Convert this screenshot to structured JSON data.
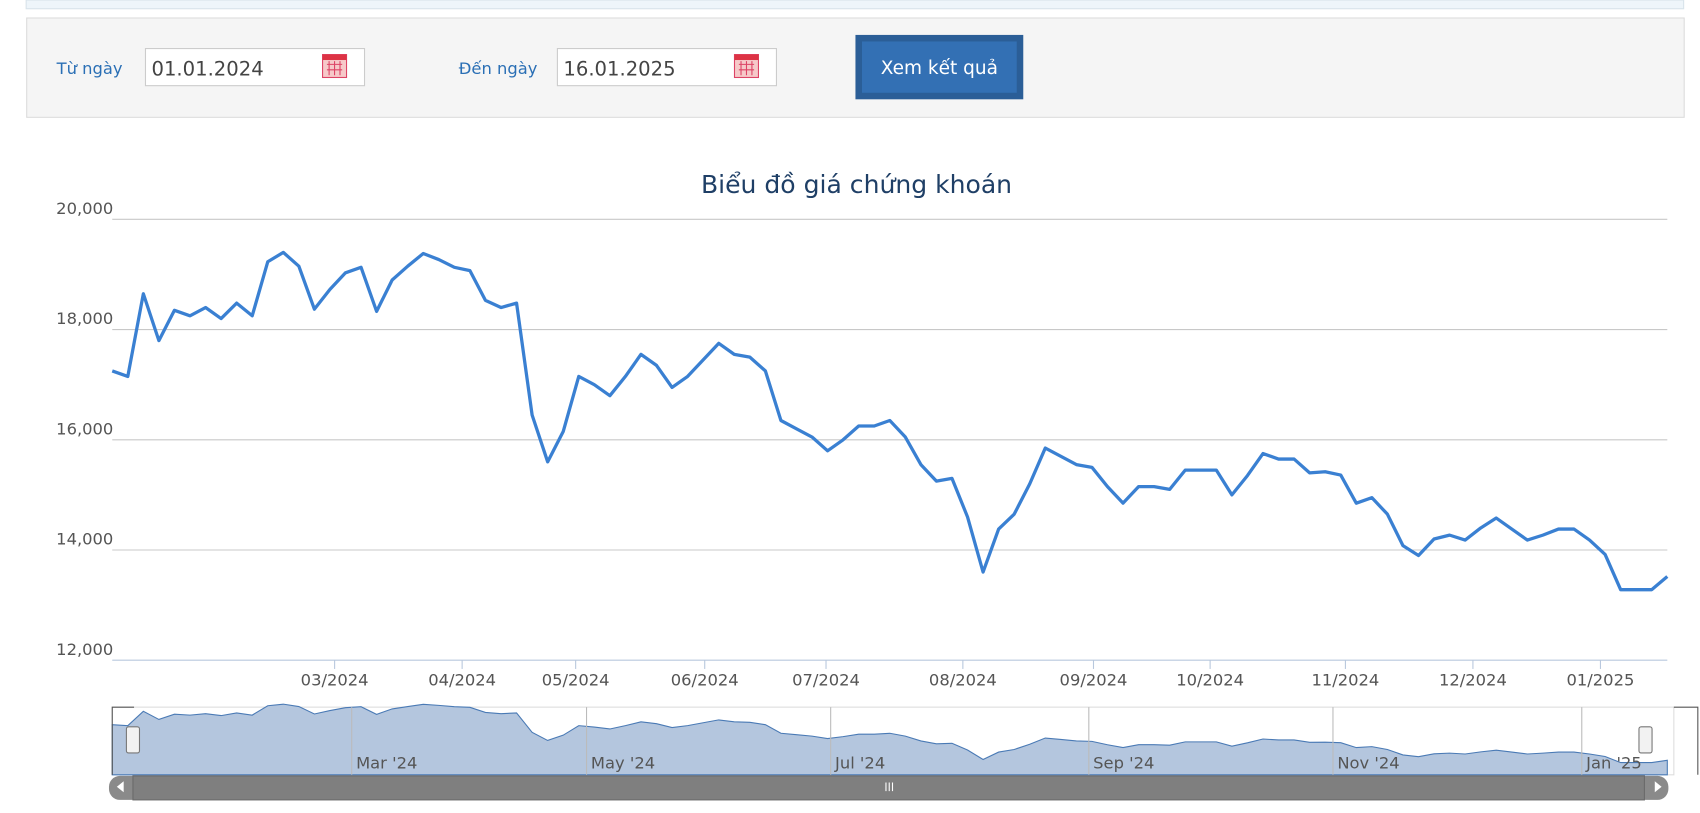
{
  "filter": {
    "from_label": "Từ ngày",
    "from_value": "01.01.2024",
    "to_label": "Đến ngày",
    "to_value": "16.01.2025",
    "button": "Xem kết quả"
  },
  "chart_data": {
    "type": "line",
    "title": "Biểu đồ giá chứng khoán",
    "color": "#3a80d2",
    "values": [
      17250,
      17150,
      18650,
      17800,
      18350,
      18250,
      18400,
      18200,
      18480,
      18250,
      19230,
      19400,
      19150,
      18370,
      18730,
      19030,
      19130,
      18330,
      18900,
      19150,
      19380,
      19270,
      19130,
      19070,
      18530,
      18400,
      18480,
      16450,
      15600,
      16150,
      17150,
      17000,
      16800,
      17150,
      17550,
      17350,
      16950,
      17150,
      17450,
      17750,
      17550,
      17500,
      17250,
      16350,
      16200,
      16050,
      15800,
      16000,
      16250,
      16250,
      16350,
      16050,
      15550,
      15250,
      15300,
      14600,
      13600,
      14380,
      14650,
      15200,
      15850,
      15700,
      15550,
      15500,
      15150,
      14850,
      15150,
      15150,
      15100,
      15450,
      15450,
      15450,
      15000,
      15350,
      15750,
      15650,
      15650,
      15400,
      15420,
      15360,
      14850,
      14950,
      14650,
      14080,
      13900,
      14200,
      14270,
      14180,
      14400,
      14580,
      14380,
      14180,
      14270,
      14380,
      14380,
      14180,
      13920,
      13280,
      13280,
      13280,
      13520
    ],
    "xlim": [
      0,
      100
    ],
    "xticks": [
      {
        "value": 14.3,
        "label": "03/2024"
      },
      {
        "value": 22.5,
        "label": "04/2024"
      },
      {
        "value": 29.8,
        "label": "05/2024"
      },
      {
        "value": 38.1,
        "label": "06/2024"
      },
      {
        "value": 45.9,
        "label": "07/2024"
      },
      {
        "value": 54.7,
        "label": "08/2024"
      },
      {
        "value": 63.1,
        "label": "09/2024"
      },
      {
        "value": 70.6,
        "label": "10/2024"
      },
      {
        "value": 79.3,
        "label": "11/2024"
      },
      {
        "value": 87.5,
        "label": "12/2024"
      },
      {
        "value": 95.7,
        "label": "01/2025"
      }
    ],
    "ylim": [
      12000,
      20000
    ],
    "yticks": [
      {
        "value": 12000,
        "label": "12,000"
      },
      {
        "value": 14000,
        "label": "14,000"
      },
      {
        "value": 16000,
        "label": "16,000"
      },
      {
        "value": 18000,
        "label": "18,000"
      },
      {
        "value": 20000,
        "label": "20,000"
      }
    ],
    "grid": true,
    "navigator": {
      "xticks": [
        {
          "value": 15.4,
          "label": "Mar '24"
        },
        {
          "value": 30.5,
          "label": "May '24"
        },
        {
          "value": 46.2,
          "label": "Jul '24"
        },
        {
          "value": 62.8,
          "label": "Sep '24"
        },
        {
          "value": 78.5,
          "label": "Nov '24"
        },
        {
          "value": 94.5,
          "label": "Jan '25"
        }
      ]
    }
  }
}
